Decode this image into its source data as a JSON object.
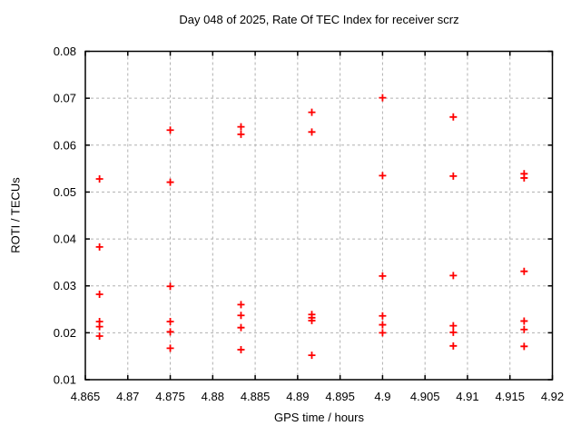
{
  "chart_data": {
    "type": "scatter",
    "title": "Day 048 of 2025, Rate Of TEC Index for receiver scrz",
    "xlabel": "GPS time / hours",
    "ylabel": "ROTI / TECUs",
    "xlim": [
      4.865,
      4.92
    ],
    "ylim": [
      0.01,
      0.08
    ],
    "xticks": [
      4.865,
      4.87,
      4.875,
      4.88,
      4.885,
      4.89,
      4.895,
      4.9,
      4.905,
      4.91,
      4.915,
      4.92
    ],
    "xtick_labels": [
      "4.865",
      "4.87",
      "4.875",
      "4.88",
      "4.885",
      "4.89",
      "4.895",
      "4.9",
      "4.905",
      "4.91",
      "4.915",
      "4.92"
    ],
    "yticks": [
      0.01,
      0.02,
      0.03,
      0.04,
      0.05,
      0.06,
      0.07,
      0.08
    ],
    "ytick_labels": [
      "0.01",
      "0.02",
      "0.03",
      "0.04",
      "0.05",
      "0.06",
      "0.07",
      "0.08"
    ],
    "grid": true,
    "legend": false,
    "marker": "plus",
    "marker_color": "#ff0000",
    "grid_color": "#b0b0b0",
    "axis_color": "#000000",
    "background": "#ffffff",
    "series": [
      {
        "name": "ROTI",
        "points": [
          [
            4.86667,
            0.0528
          ],
          [
            4.86667,
            0.0383
          ],
          [
            4.86667,
            0.0282
          ],
          [
            4.86667,
            0.0224
          ],
          [
            4.86667,
            0.0213
          ],
          [
            4.86667,
            0.0193
          ],
          [
            4.875,
            0.0632
          ],
          [
            4.875,
            0.0521
          ],
          [
            4.875,
            0.0299
          ],
          [
            4.875,
            0.0224
          ],
          [
            4.875,
            0.0202
          ],
          [
            4.875,
            0.0167
          ],
          [
            4.88333,
            0.0639
          ],
          [
            4.88333,
            0.0623
          ],
          [
            4.88333,
            0.026
          ],
          [
            4.88333,
            0.0237
          ],
          [
            4.88333,
            0.0211
          ],
          [
            4.88333,
            0.0164
          ],
          [
            4.89167,
            0.067
          ],
          [
            4.89167,
            0.0628
          ],
          [
            4.89167,
            0.0239
          ],
          [
            4.89167,
            0.0232
          ],
          [
            4.89167,
            0.0226
          ],
          [
            4.89167,
            0.0152
          ],
          [
            4.9,
            0.0701
          ],
          [
            4.9,
            0.0535
          ],
          [
            4.9,
            0.0321
          ],
          [
            4.9,
            0.0236
          ],
          [
            4.9,
            0.0217
          ],
          [
            4.9,
            0.02
          ],
          [
            4.90833,
            0.066
          ],
          [
            4.90833,
            0.0534
          ],
          [
            4.90833,
            0.0322
          ],
          [
            4.90833,
            0.0215
          ],
          [
            4.90833,
            0.0201
          ],
          [
            4.90833,
            0.0172
          ],
          [
            4.91667,
            0.0539
          ],
          [
            4.91667,
            0.053
          ],
          [
            4.91667,
            0.0331
          ],
          [
            4.91667,
            0.0225
          ],
          [
            4.91667,
            0.0207
          ],
          [
            4.91667,
            0.0171
          ]
        ]
      }
    ]
  }
}
